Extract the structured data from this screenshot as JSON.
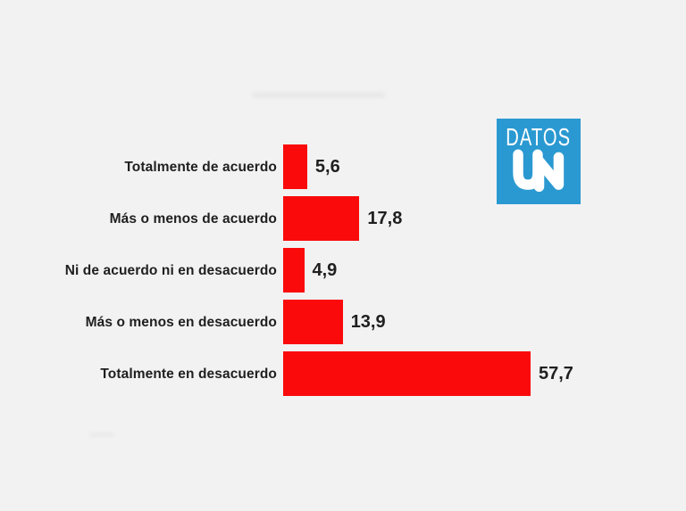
{
  "background_color": "#f2f2f2",
  "chart_data": {
    "type": "bar",
    "orientation": "horizontal",
    "title": "",
    "xlabel": "",
    "ylabel": "",
    "grid": false,
    "legend": false,
    "xlim": [
      0,
      60
    ],
    "categories": [
      "Totalmente de acuerdo",
      "Más o menos de acuerdo",
      "Ni de acuerdo ni en desacuerdo",
      "Más o menos en desacuerdo",
      "Totalmente en desacuerdo"
    ],
    "values": [
      5.6,
      17.8,
      4.9,
      13.9,
      57.7
    ],
    "value_labels": [
      "5,6",
      "17,8",
      "4,9",
      "13,9",
      "57,7"
    ],
    "bar_color": "#fa0a0a",
    "text_color": "#1f1f1f"
  },
  "logo": {
    "text_top": "DATOS",
    "mark": "UN",
    "bg_color": "#2a99d1",
    "fg_color": "#ffffff"
  }
}
